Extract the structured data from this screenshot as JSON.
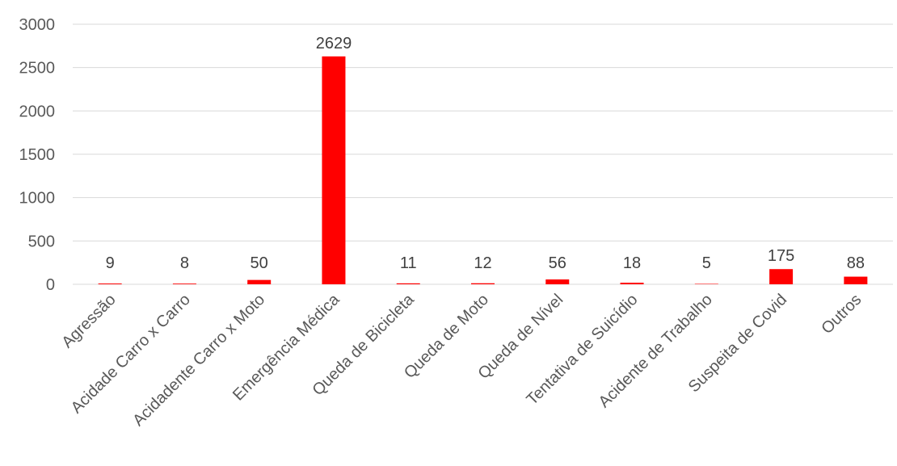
{
  "chart_data": {
    "type": "bar",
    "title": "",
    "xlabel": "",
    "ylabel": "",
    "categories": [
      "Agressão",
      "Acidade Carro x Carro",
      "Acidadente Carro x Moto",
      "Emergência Médica",
      "Queda de Bicicleta",
      "Queda de Moto",
      "Queda de Nível",
      "Tentativa de Suicídio",
      "Acidente de Trabalho",
      "Suspeita de Covid",
      "Outros"
    ],
    "values": [
      9,
      8,
      50,
      2629,
      11,
      12,
      56,
      18,
      5,
      175,
      88
    ],
    "data_labels": [
      "9",
      "8",
      "50",
      "2629",
      "11",
      "12",
      "56",
      "18",
      "5",
      "175",
      "88"
    ],
    "ylim": [
      0,
      3000
    ],
    "yticks": [
      0,
      500,
      1000,
      1500,
      2000,
      2500,
      3000
    ],
    "ytick_labels": [
      "0",
      "500",
      "1000",
      "1500",
      "2000",
      "2500",
      "3000"
    ],
    "grid": true,
    "legend": "none",
    "bar_color": "#ff0000",
    "gridline_color": "#d9d9d9",
    "text_color": "#595959"
  }
}
